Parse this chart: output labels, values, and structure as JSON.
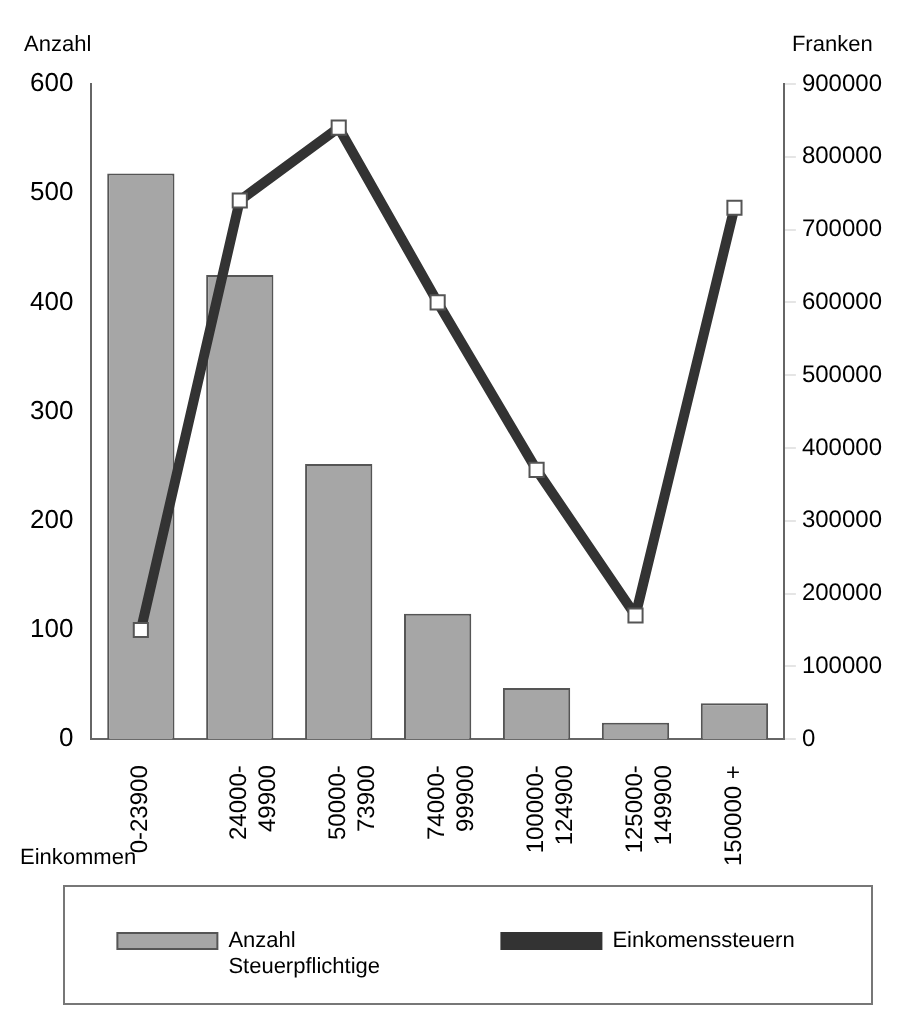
{
  "chart_data": {
    "type": "bar",
    "ylabel": "Anzahl",
    "y2label": "Franken",
    "xlabel": "Einkommen",
    "categories": [
      "0-23900",
      "24000-\n49900",
      "50000-\n73900",
      "74000-\n99900",
      "100000-\n124900",
      "125000-\n149900",
      "150000 +"
    ],
    "series": [
      {
        "name": "Anzahl\nSteuerpflichtige",
        "type": "bar",
        "color": "#a6a6a6",
        "values": [
          518,
          425,
          252,
          115,
          47,
          15,
          33
        ]
      },
      {
        "name": "Einkomenssteuern",
        "type": "line",
        "axis": "y2",
        "color": "#333333",
        "marker": "square",
        "values": [
          150000,
          740000,
          840000,
          600000,
          370000,
          170000,
          730000
        ]
      }
    ],
    "ylim": [
      0,
      600
    ],
    "yticks": [
      0,
      100,
      200,
      300,
      400,
      500,
      600
    ],
    "y2lim": [
      0,
      900000
    ],
    "y2ticks": [
      0,
      100000,
      200000,
      300000,
      400000,
      500000,
      600000,
      700000,
      800000,
      900000
    ],
    "grid": false,
    "legend": "bottom"
  }
}
